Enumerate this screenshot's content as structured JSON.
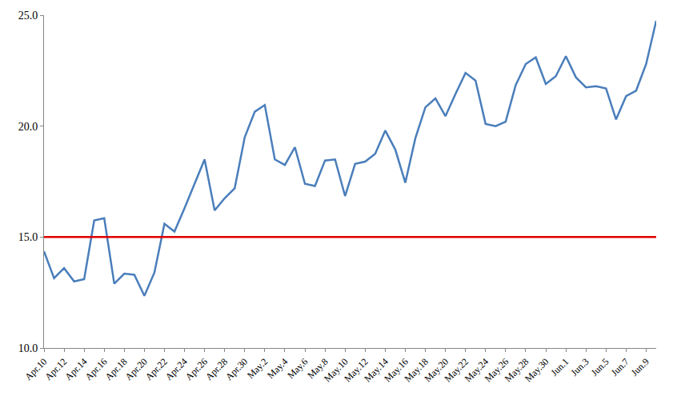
{
  "chart_data": {
    "type": "line",
    "categories": [
      "Apr.10",
      null,
      "Apr.12",
      null,
      "Apr.14",
      null,
      "Apr.16",
      null,
      "Apr.18",
      null,
      "Apr.20",
      null,
      "Apr.22",
      null,
      "Apr.24",
      null,
      "Apr.26",
      null,
      "Apr.28",
      null,
      "Apr.30",
      null,
      "May.2",
      null,
      "May.4",
      null,
      "May.6",
      null,
      "May.8",
      null,
      "May.10",
      null,
      "May.12",
      null,
      "May.14",
      null,
      "May.16",
      null,
      "May.18",
      null,
      "May.20",
      null,
      "May.22",
      null,
      "May.24",
      null,
      "May.26",
      null,
      "May.28",
      null,
      "May.30",
      null,
      "Jun.1",
      null,
      "Jun.3",
      null,
      "Jun.5",
      null,
      "Jun.7",
      null,
      "Jun.9",
      null
    ],
    "series": [
      {
        "color": "#4a7ebb",
        "values": [
          14.36,
          13.15,
          13.6,
          13.0,
          13.1,
          15.75,
          15.85,
          12.9,
          13.35,
          13.3,
          12.35,
          13.4,
          15.6,
          15.25,
          16.3,
          17.4,
          18.5,
          16.2,
          16.75,
          17.2,
          19.5,
          20.65,
          20.95,
          18.5,
          18.25,
          19.05,
          17.4,
          17.3,
          18.45,
          18.5,
          16.85,
          18.3,
          18.4,
          18.75,
          19.8,
          18.95,
          17.45,
          19.45,
          20.85,
          21.25,
          20.45,
          21.45,
          22.4,
          22.05,
          20.1,
          20.0,
          20.2,
          21.85,
          22.8,
          23.1,
          21.9,
          22.25,
          23.15,
          22.2,
          21.75,
          21.8,
          21.7,
          20.3,
          21.35,
          21.6,
          22.8,
          24.75
        ]
      },
      {
        "color": "#e00000",
        "values": [
          15,
          15,
          15,
          15,
          15,
          15,
          15,
          15,
          15,
          15,
          15,
          15,
          15,
          15,
          15,
          15,
          15,
          15,
          15,
          15,
          15,
          15,
          15,
          15,
          15,
          15,
          15,
          15,
          15,
          15,
          15,
          15,
          15,
          15,
          15,
          15,
          15,
          15,
          15,
          15,
          15,
          15,
          15,
          15,
          15,
          15,
          15,
          15,
          15,
          15,
          15,
          15,
          15,
          15,
          15,
          15,
          15,
          15,
          15,
          15,
          15,
          15
        ]
      }
    ],
    "ylim": [
      10,
      25
    ],
    "yticks": [
      {
        "value": 10,
        "label": "10.0"
      },
      {
        "value": 15,
        "label": "15.0"
      },
      {
        "value": 20,
        "label": "20.0"
      },
      {
        "value": 25,
        "label": "25.0"
      }
    ],
    "grid": false
  }
}
